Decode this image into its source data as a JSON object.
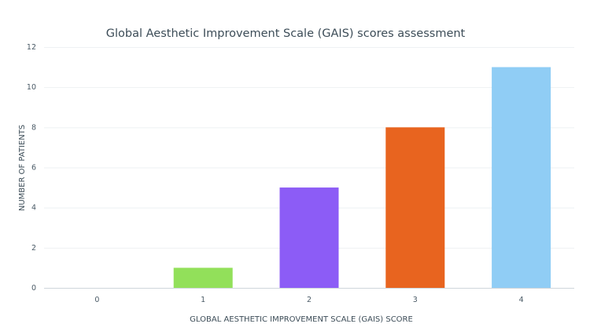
{
  "chart_data": {
    "type": "bar",
    "title": "Global Aesthetic Improvement Scale (GAIS)  scores assessment",
    "xlabel": "GLOBAL AESTHETIC IMPROVEMENT SCALE (GAIS)  SCORE",
    "ylabel": "NUMBER OF PATIENTS",
    "categories": [
      "0",
      "1",
      "2",
      "3",
      "4"
    ],
    "values": [
      0,
      1,
      5,
      8,
      11
    ],
    "colors": [
      "#9bd15f",
      "#92e05a",
      "#8c5cf6",
      "#e8641f",
      "#90cdf5"
    ],
    "ylim": [
      0,
      12
    ],
    "yticks": [
      "0",
      "2",
      "4",
      "6",
      "8",
      "10",
      "12"
    ],
    "grid": true,
    "legend": "none"
  }
}
